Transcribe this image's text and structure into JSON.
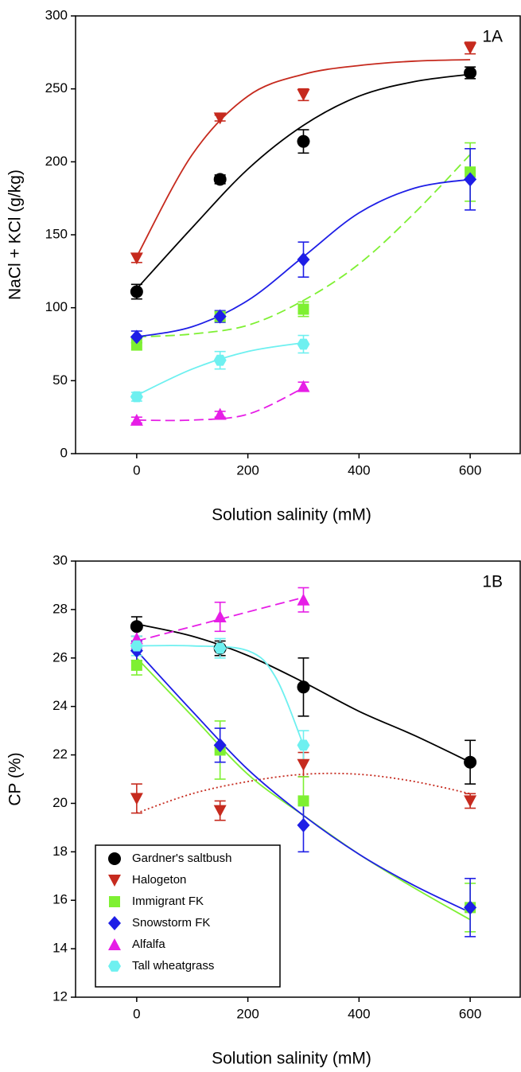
{
  "chart_data": [
    {
      "type": "scatter",
      "xlabel": "Solution salinity (mM)",
      "ylabel": "NaCl + KCl (g/kg)",
      "annotation": "1A",
      "xlim": [
        -110,
        690
      ],
      "xticks": [
        0,
        200,
        400,
        600
      ],
      "ylim": [
        0,
        300
      ],
      "yticks": [
        0,
        50,
        100,
        150,
        200,
        250,
        300
      ],
      "series": [
        {
          "color": "#000000",
          "marker": "circle",
          "dash": "solid",
          "x": [
            0,
            150,
            300,
            600
          ],
          "values": [
            111,
            188,
            214,
            261
          ],
          "errors": [
            5,
            3,
            8,
            4
          ],
          "fit": {
            "x": [
              0,
              100,
              200,
              300,
              400,
              500,
              600
            ],
            "y": [
              113,
              155,
              195,
              225,
              245,
              255,
              260
            ]
          }
        },
        {
          "color": "#c62a1e",
          "marker": "triangle-down",
          "dash": "solid",
          "x": [
            0,
            150,
            300,
            600
          ],
          "values": [
            134,
            230,
            246,
            278
          ],
          "errors": [
            3,
            2,
            4,
            4
          ],
          "fit": {
            "x": [
              0,
              100,
              200,
              300,
              400,
              500,
              600
            ],
            "y": [
              135,
              205,
              245,
              260,
              266,
              269,
              270
            ]
          }
        },
        {
          "color": "#7ef032",
          "marker": "square",
          "dash": "dashed",
          "x": [
            0,
            150,
            300,
            600
          ],
          "values": [
            75,
            94,
            99,
            193
          ],
          "errors": [
            4,
            3,
            5,
            20
          ],
          "fit": {
            "x": [
              0,
              100,
              200,
              300,
              400,
              500,
              600
            ],
            "y": [
              80,
              82,
              88,
              105,
              130,
              165,
              205
            ]
          }
        },
        {
          "color": "#1e1ee6",
          "marker": "diamond",
          "dash": "solid",
          "x": [
            0,
            150,
            300,
            600
          ],
          "values": [
            80,
            94,
            133,
            188
          ],
          "errors": [
            4,
            4,
            12,
            21
          ],
          "fit": {
            "x": [
              0,
              100,
              200,
              300,
              400,
              500,
              600
            ],
            "y": [
              80,
              87,
              105,
              135,
              165,
              182,
              188
            ]
          }
        },
        {
          "color": "#e61ee6",
          "marker": "triangle-up",
          "dash": "dashed",
          "x": [
            0,
            150,
            300
          ],
          "values": [
            23,
            27,
            46
          ],
          "errors": [
            2,
            2,
            3
          ],
          "fit": {
            "x": [
              0,
              100,
              200,
              300
            ],
            "y": [
              23,
              23,
              27,
              45
            ]
          }
        },
        {
          "color": "#6ef0f0",
          "marker": "hexagon",
          "dash": "solid",
          "x": [
            0,
            150,
            300
          ],
          "values": [
            39,
            64,
            75
          ],
          "errors": [
            3,
            6,
            6
          ],
          "fit": {
            "x": [
              0,
              100,
              200,
              300
            ],
            "y": [
              40,
              58,
              70,
              76
            ]
          }
        }
      ]
    },
    {
      "type": "scatter",
      "xlabel": "Solution salinity (mM)",
      "ylabel": "CP (%)",
      "annotation": "1B",
      "legend": "lower left",
      "xlim": [
        -110,
        690
      ],
      "xticks": [
        0,
        200,
        400,
        600
      ],
      "ylim": [
        12,
        30
      ],
      "yticks": [
        12,
        14,
        16,
        18,
        20,
        22,
        24,
        26,
        28,
        30
      ],
      "series": [
        {
          "name": "Gardner's saltbush",
          "color": "#000000",
          "marker": "circle",
          "dash": "solid",
          "x": [
            0,
            150,
            300,
            600
          ],
          "values": [
            27.3,
            26.4,
            24.8,
            21.7
          ],
          "errors": [
            0.4,
            0.3,
            1.2,
            0.9
          ],
          "fit": {
            "x": [
              0,
              100,
              200,
              300,
              400,
              500,
              600
            ],
            "y": [
              27.4,
              26.9,
              26.1,
              25.0,
              23.8,
              22.8,
              21.7
            ]
          }
        },
        {
          "name": "Halogeton",
          "color": "#c62a1e",
          "marker": "triangle-down",
          "dash": "dotted",
          "x": [
            0,
            150,
            300,
            600
          ],
          "values": [
            20.2,
            19.7,
            21.6,
            20.1
          ],
          "errors": [
            0.6,
            0.4,
            0.5,
            0.3
          ],
          "fit": {
            "x": [
              0,
              100,
              200,
              300,
              400,
              500,
              600
            ],
            "y": [
              19.6,
              20.4,
              20.9,
              21.2,
              21.2,
              20.9,
              20.4
            ]
          }
        },
        {
          "name": "Immigrant FK",
          "color": "#7ef032",
          "marker": "square",
          "dash": "solid",
          "x": [
            0,
            150,
            300,
            600
          ],
          "values": [
            25.7,
            22.2,
            20.1,
            15.7
          ],
          "errors": [
            0.4,
            1.2,
            1.0,
            1.0
          ],
          "fit": {
            "x": [
              0,
              100,
              200,
              300,
              400,
              500,
              600
            ],
            "y": [
              26.0,
              23.6,
              21.2,
              19.5,
              17.9,
              16.5,
              15.2
            ]
          }
        },
        {
          "name": "Snowstorm FK",
          "color": "#1e1ee6",
          "marker": "diamond",
          "dash": "solid",
          "x": [
            0,
            150,
            300,
            600
          ],
          "values": [
            26.3,
            22.4,
            19.1,
            15.7
          ],
          "errors": [
            0.4,
            0.7,
            1.1,
            1.2
          ],
          "fit": {
            "x": [
              0,
              100,
              200,
              300,
              400,
              500,
              600
            ],
            "y": [
              26.3,
              23.8,
              21.4,
              19.5,
              17.9,
              16.6,
              15.5
            ]
          }
        },
        {
          "name": "Alfalfa",
          "color": "#e61ee6",
          "marker": "triangle-up",
          "dash": "dashed",
          "x": [
            0,
            150,
            300
          ],
          "values": [
            26.8,
            27.7,
            28.4
          ],
          "errors": [
            0.4,
            0.6,
            0.5
          ],
          "fit": {
            "x": [
              0,
              100,
              200,
              300
            ],
            "y": [
              26.7,
              27.3,
              27.9,
              28.5
            ]
          }
        },
        {
          "name": "Tall wheatgrass",
          "color": "#6ef0f0",
          "marker": "hexagon",
          "dash": "solid",
          "x": [
            0,
            150,
            300
          ],
          "values": [
            26.5,
            26.4,
            22.4
          ],
          "errors": [
            0.4,
            0.4,
            0.6
          ],
          "fit": {
            "x": [
              0,
              100,
              200,
              250,
              300
            ],
            "y": [
              26.5,
              26.5,
              26.3,
              25.2,
              22.4
            ]
          }
        }
      ]
    }
  ]
}
